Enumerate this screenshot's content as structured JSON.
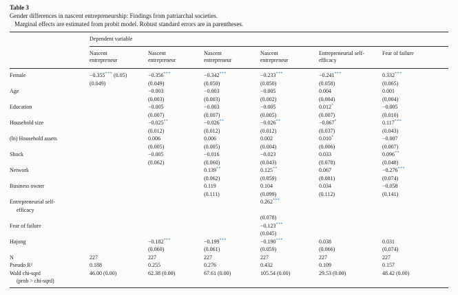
{
  "header": {
    "label": "Table 3",
    "title": "Gender differences in nascent entrepreneurship: Findings from patriarchal societies.",
    "subtitle": "Marginal effects are estimated from probit model. Robust standard errors are in parentheses."
  },
  "table": {
    "spanner": "Dependent variable",
    "columns": [
      [
        "Nascent",
        "entrepreneur"
      ],
      [
        "Nascent",
        "entrepreneur"
      ],
      [
        "Nascent",
        "entrepreneur"
      ],
      [
        "Nascent",
        "entrepreneur"
      ],
      [
        "Entrepreneurial self-",
        "efficacy"
      ],
      [
        "Fear of failure"
      ]
    ],
    "rows": [
      {
        "type": "coef",
        "label": "Female",
        "cells": [
          {
            "est": "−0.355*** (0.05)",
            "se": "(0.049)"
          },
          {
            "est": "−0.356***",
            "se": "(0.049)"
          },
          {
            "est": "−0.342***",
            "se": "(0.050)"
          },
          {
            "est": "−0.233***",
            "se": "(0.050)"
          },
          {
            "est": "−0.241***",
            "se": "(0.058)"
          },
          {
            "est": "0.332***",
            "se": "(0.065)"
          }
        ]
      },
      {
        "type": "coef",
        "label": "Age",
        "cells": [
          {
            "est": "",
            "se": ""
          },
          {
            "est": "−0.003",
            "se": "(0.003)"
          },
          {
            "est": "−0.003",
            "se": "(0.003)"
          },
          {
            "est": "−0.005",
            "se": "(0.002)"
          },
          {
            "est": "0.004",
            "se": "(0.004)"
          },
          {
            "est": "0.001",
            "se": "(0.004)"
          }
        ]
      },
      {
        "type": "coef",
        "label": "Education",
        "cells": [
          {
            "est": "",
            "se": ""
          },
          {
            "est": "−0.005",
            "se": "(0.007)"
          },
          {
            "est": "−0.003",
            "se": "(0.007)"
          },
          {
            "est": "−0.005",
            "se": "(0.005)"
          },
          {
            "est": "0.012*",
            "se": "(0.007)"
          },
          {
            "est": "−0.005",
            "se": "(0.010)"
          }
        ]
      },
      {
        "type": "coef",
        "label": "Household size",
        "cells": [
          {
            "est": "",
            "se": ""
          },
          {
            "est": "−0.025**",
            "se": "(0.012)"
          },
          {
            "est": "−0.026**",
            "se": "(0.012)"
          },
          {
            "est": "−0.026**",
            "se": "(0.012)"
          },
          {
            "est": "−0.067*",
            "se": "(0.037)"
          },
          {
            "est": "0.117***",
            "se": "(0.043)"
          }
        ]
      },
      {
        "type": "coef",
        "label": "(ln) Household assets",
        "cells": [
          {
            "est": "",
            "se": ""
          },
          {
            "est": "0.006",
            "se": "(0.005)"
          },
          {
            "est": "0.006",
            "se": "(0.005)"
          },
          {
            "est": "0.002",
            "se": "(0.004)"
          },
          {
            "est": "0.010*",
            "se": "(0.006)"
          },
          {
            "est": "−0.007",
            "se": "(0.007)"
          }
        ]
      },
      {
        "type": "coef",
        "label": "Shock",
        "cells": [
          {
            "est": "",
            "se": ""
          },
          {
            "est": "−0.005",
            "se": "(0.062)"
          },
          {
            "est": "−0.016",
            "se": "(0.060)"
          },
          {
            "est": "−0.023",
            "se": "(0.043)"
          },
          {
            "est": "0.033",
            "se": "(0.078)"
          },
          {
            "est": "0.096**",
            "se": "(0.048)"
          }
        ]
      },
      {
        "type": "coef",
        "label": "Network",
        "cells": [
          {
            "est": "",
            "se": ""
          },
          {
            "est": "",
            "se": ""
          },
          {
            "est": "0.139**",
            "se": "(0.062)"
          },
          {
            "est": "0.125**",
            "se": "(0.059)"
          },
          {
            "est": "0.067",
            "se": "(0.081)"
          },
          {
            "est": "−0.276***",
            "se": "(0.074)"
          }
        ]
      },
      {
        "type": "coef",
        "label": "Business owner",
        "cells": [
          {
            "est": "",
            "se": ""
          },
          {
            "est": "",
            "se": ""
          },
          {
            "est": "0.119",
            "se": "(0.111)"
          },
          {
            "est": "0.104",
            "se": "(0.099)"
          },
          {
            "est": "0.034",
            "se": "(0.112)"
          },
          {
            "est": "−0.058",
            "se": "(0.141)"
          }
        ]
      },
      {
        "type": "coef",
        "label": "Entrepreneurial self-",
        "label2": "efficacy",
        "gap": true,
        "cells": [
          {
            "est": "",
            "se": ""
          },
          {
            "est": "",
            "se": ""
          },
          {
            "est": "",
            "se": ""
          },
          {
            "est": "0.262***",
            "se": "(0.078)"
          },
          {
            "est": "",
            "se": ""
          },
          {
            "est": "",
            "se": ""
          }
        ]
      },
      {
        "type": "coef",
        "label": "Fear of failure",
        "cells": [
          {
            "est": "",
            "se": ""
          },
          {
            "est": "",
            "se": ""
          },
          {
            "est": "",
            "se": ""
          },
          {
            "est": "−0.123***",
            "se": "(0.045)"
          },
          {
            "est": "",
            "se": ""
          },
          {
            "est": "",
            "se": ""
          }
        ]
      },
      {
        "type": "coef",
        "label": "Hajong",
        "cells": [
          {
            "est": "",
            "se": ""
          },
          {
            "est": "−0.182***",
            "se": "(0.060)"
          },
          {
            "est": "−0.199***",
            "se": "(0.061)"
          },
          {
            "est": "−0.190***",
            "se": "(0.059)"
          },
          {
            "est": "0.038",
            "se": "(0.066)"
          },
          {
            "est": "0.031",
            "se": "(0.074)"
          }
        ]
      },
      {
        "type": "stat",
        "label": "N",
        "values": [
          "227",
          "227",
          "227",
          "227",
          "227",
          "227"
        ]
      },
      {
        "type": "stat",
        "label": "Pseudo R²",
        "values": [
          "0.188",
          "0.255",
          "0.276",
          "0.432",
          "0.109",
          "0.157"
        ]
      },
      {
        "type": "stat",
        "label": "Wald chi-sqrd",
        "label2": "(prob > chi-sqrd)",
        "values": [
          "46.00 (0.00)",
          "62.38 (0.00)",
          "67.61 (0.00)",
          "105.54 (0.00)",
          "29.53 (0.00)",
          "48.42 (0.00)"
        ]
      }
    ]
  }
}
